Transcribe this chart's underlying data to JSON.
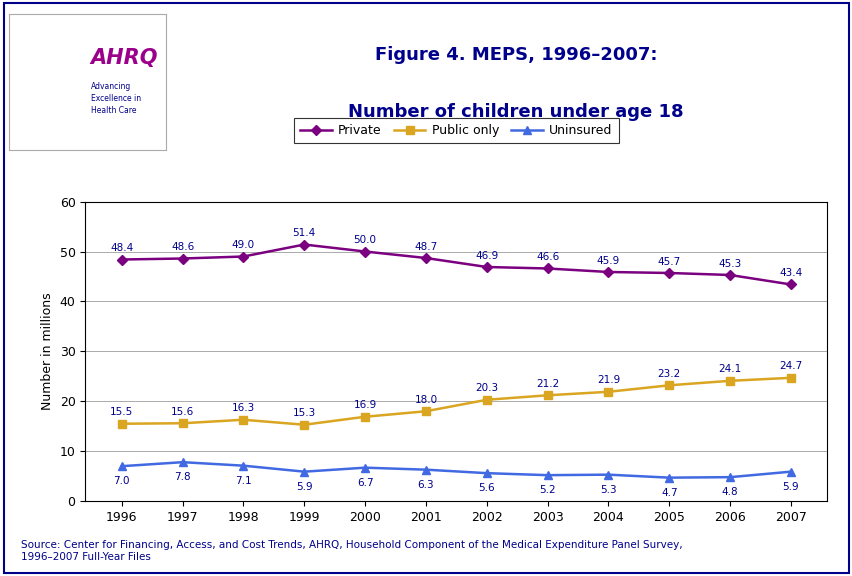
{
  "title_line1": "Figure 4. MEPS, 1996–2007:",
  "title_line2": "Number of children under age 18",
  "ylabel": "Number in millions",
  "years": [
    1996,
    1997,
    1998,
    1999,
    2000,
    2001,
    2002,
    2003,
    2004,
    2005,
    2006,
    2007
  ],
  "private": [
    48.4,
    48.6,
    49.0,
    51.4,
    50.0,
    48.7,
    46.9,
    46.6,
    45.9,
    45.7,
    45.3,
    43.4
  ],
  "public_only": [
    15.5,
    15.6,
    16.3,
    15.3,
    16.9,
    18.0,
    20.3,
    21.2,
    21.9,
    23.2,
    24.1,
    24.7
  ],
  "uninsured": [
    7.0,
    7.8,
    7.1,
    5.9,
    6.7,
    6.3,
    5.6,
    5.2,
    5.3,
    4.7,
    4.8,
    5.9
  ],
  "private_color": "#7B0080",
  "public_color": "#DAA520",
  "uninsured_color": "#4169E1",
  "label_color": "#00008B",
  "ylim": [
    0,
    60
  ],
  "yticks": [
    0,
    10,
    20,
    30,
    40,
    50,
    60
  ],
  "background_color": "#ffffff",
  "title_color": "#00008B",
  "source_text": "Source: Center for Financing, Access, and Cost Trends, AHRQ, Household Component of the Medical Expenditure Panel Survey,\n1996–2007 Full-Year Files",
  "source_color": "#00008B",
  "header_bar_color": "#00008B",
  "legend_labels": [
    "Private",
    "Public only",
    "Uninsured"
  ],
  "outer_border_color": "#00008B"
}
